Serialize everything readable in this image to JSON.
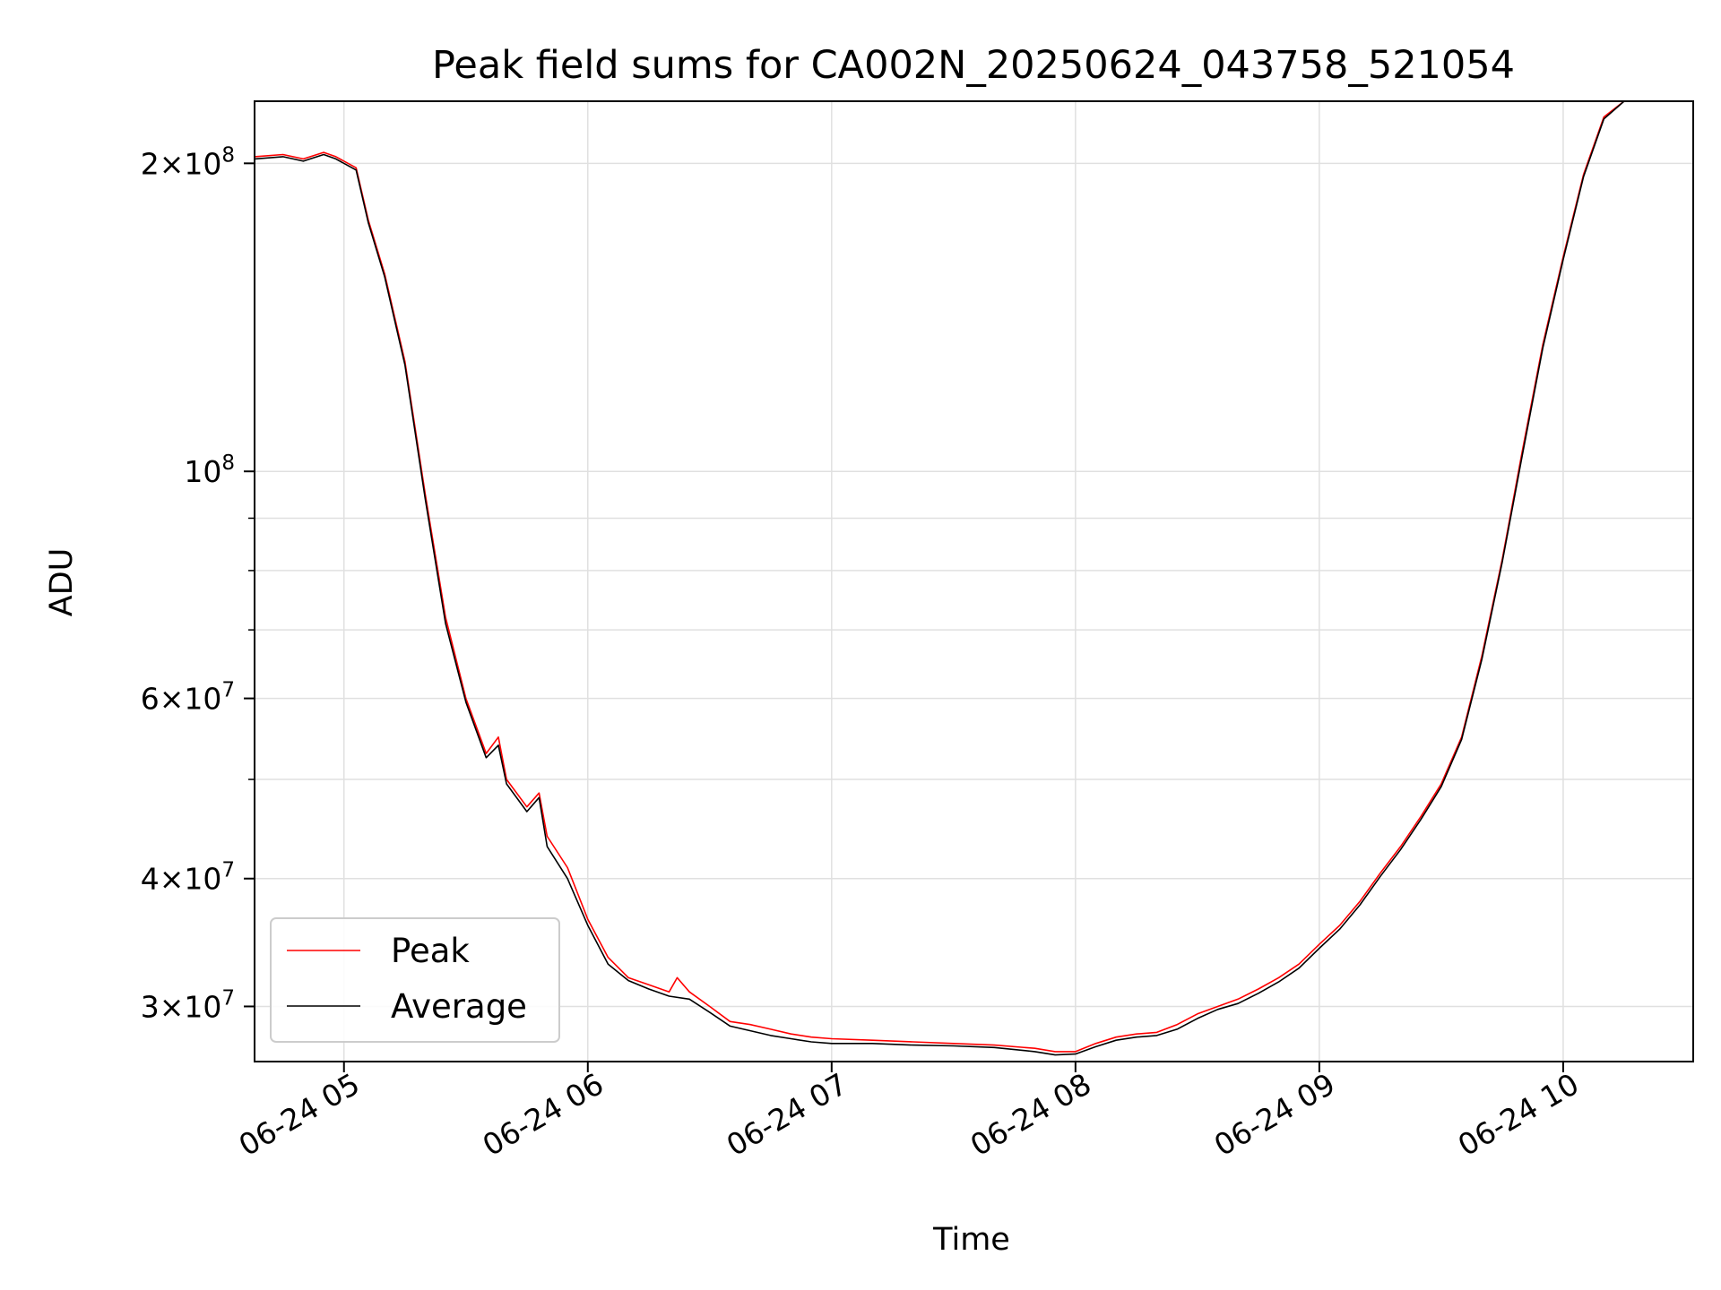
{
  "chart_data": {
    "type": "line",
    "title": "Peak field sums for CA002N_20250624_043758_521054",
    "xlabel": "Time",
    "ylabel": "ADU",
    "x_scale": "time",
    "y_scale": "log",
    "xlim": [
      "2025-06-24 04:38",
      "2025-06-24 10:32"
    ],
    "ylim": [
      26500000,
      230000000
    ],
    "x_ticks": [
      {
        "value": "2025-06-24 05:00",
        "label": "06-24 05"
      },
      {
        "value": "2025-06-24 06:00",
        "label": "06-24 06"
      },
      {
        "value": "2025-06-24 07:00",
        "label": "06-24 07"
      },
      {
        "value": "2025-06-24 08:00",
        "label": "06-24 08"
      },
      {
        "value": "2025-06-24 09:00",
        "label": "06-24 09"
      },
      {
        "value": "2025-06-24 10:00",
        "label": "06-24 10"
      }
    ],
    "y_major_ticks": [
      {
        "value": 30000000,
        "mant": "3",
        "exp": "7"
      },
      {
        "value": 40000000,
        "mant": "4",
        "exp": "7"
      },
      {
        "value": 60000000,
        "mant": "6",
        "exp": "7"
      },
      {
        "value": 100000000,
        "mant": "",
        "exp": "8"
      },
      {
        "value": 200000000,
        "mant": "2",
        "exp": "8"
      }
    ],
    "y_minor_ticks": [
      50000000,
      70000000,
      80000000,
      90000000
    ],
    "grid": true,
    "legend_position": "lower-left",
    "series": [
      {
        "name": "Peak",
        "color": "#ff0000",
        "points": [
          [
            "2025-06-24 04:38",
            203000000
          ],
          [
            "2025-06-24 04:45",
            204000000
          ],
          [
            "2025-06-24 04:50",
            202000000
          ],
          [
            "2025-06-24 04:55",
            205000000
          ],
          [
            "2025-06-24 04:58",
            203000000
          ],
          [
            "2025-06-24 05:03",
            198000000
          ],
          [
            "2025-06-24 05:06",
            176000000
          ],
          [
            "2025-06-24 05:10",
            156000000
          ],
          [
            "2025-06-24 05:15",
            128000000
          ],
          [
            "2025-06-24 05:20",
            95000000
          ],
          [
            "2025-06-24 05:25",
            72000000
          ],
          [
            "2025-06-24 05:30",
            60000000
          ],
          [
            "2025-06-24 05:35",
            53000000
          ],
          [
            "2025-06-24 05:38",
            55000000
          ],
          [
            "2025-06-24 05:40",
            50000000
          ],
          [
            "2025-06-24 05:45",
            47000000
          ],
          [
            "2025-06-24 05:48",
            48500000
          ],
          [
            "2025-06-24 05:50",
            44000000
          ],
          [
            "2025-06-24 05:55",
            41000000
          ],
          [
            "2025-06-24 06:00",
            36500000
          ],
          [
            "2025-06-24 06:05",
            33500000
          ],
          [
            "2025-06-24 06:10",
            32000000
          ],
          [
            "2025-06-24 06:15",
            31500000
          ],
          [
            "2025-06-24 06:20",
            31000000
          ],
          [
            "2025-06-24 06:22",
            32000000
          ],
          [
            "2025-06-24 06:25",
            31000000
          ],
          [
            "2025-06-24 06:30",
            30000000
          ],
          [
            "2025-06-24 06:35",
            29000000
          ],
          [
            "2025-06-24 06:40",
            28800000
          ],
          [
            "2025-06-24 06:45",
            28500000
          ],
          [
            "2025-06-24 06:50",
            28200000
          ],
          [
            "2025-06-24 06:55",
            28000000
          ],
          [
            "2025-06-24 07:00",
            27900000
          ],
          [
            "2025-06-24 07:10",
            27800000
          ],
          [
            "2025-06-24 07:20",
            27700000
          ],
          [
            "2025-06-24 07:30",
            27600000
          ],
          [
            "2025-06-24 07:40",
            27500000
          ],
          [
            "2025-06-24 07:50",
            27300000
          ],
          [
            "2025-06-24 07:55",
            27100000
          ],
          [
            "2025-06-24 08:00",
            27100000
          ],
          [
            "2025-06-24 08:05",
            27600000
          ],
          [
            "2025-06-24 08:10",
            28000000
          ],
          [
            "2025-06-24 08:15",
            28200000
          ],
          [
            "2025-06-24 08:20",
            28300000
          ],
          [
            "2025-06-24 08:25",
            28800000
          ],
          [
            "2025-06-24 08:30",
            29500000
          ],
          [
            "2025-06-24 08:35",
            30000000
          ],
          [
            "2025-06-24 08:40",
            30500000
          ],
          [
            "2025-06-24 08:45",
            31200000
          ],
          [
            "2025-06-24 08:50",
            32000000
          ],
          [
            "2025-06-24 08:55",
            33000000
          ],
          [
            "2025-06-24 09:00",
            34500000
          ],
          [
            "2025-06-24 09:05",
            36000000
          ],
          [
            "2025-06-24 09:10",
            38000000
          ],
          [
            "2025-06-24 09:15",
            40500000
          ],
          [
            "2025-06-24 09:20",
            43000000
          ],
          [
            "2025-06-24 09:25",
            46000000
          ],
          [
            "2025-06-24 09:30",
            49500000
          ],
          [
            "2025-06-24 09:35",
            55000000
          ],
          [
            "2025-06-24 09:40",
            66000000
          ],
          [
            "2025-06-24 09:45",
            82000000
          ],
          [
            "2025-06-24 09:50",
            105000000
          ],
          [
            "2025-06-24 09:55",
            133000000
          ],
          [
            "2025-06-24 10:00",
            162000000
          ],
          [
            "2025-06-24 10:05",
            195000000
          ],
          [
            "2025-06-24 10:10",
            222000000
          ],
          [
            "2025-06-24 10:15",
            230000000
          ]
        ]
      },
      {
        "name": "Average",
        "color": "#000000",
        "points": [
          [
            "2025-06-24 04:38",
            202000000
          ],
          [
            "2025-06-24 04:45",
            203000000
          ],
          [
            "2025-06-24 04:50",
            201000000
          ],
          [
            "2025-06-24 04:55",
            204000000
          ],
          [
            "2025-06-24 04:58",
            202000000
          ],
          [
            "2025-06-24 05:03",
            197000000
          ],
          [
            "2025-06-24 05:06",
            175000000
          ],
          [
            "2025-06-24 05:10",
            155000000
          ],
          [
            "2025-06-24 05:15",
            127000000
          ],
          [
            "2025-06-24 05:20",
            94000000
          ],
          [
            "2025-06-24 05:25",
            71000000
          ],
          [
            "2025-06-24 05:30",
            59500000
          ],
          [
            "2025-06-24 05:35",
            52500000
          ],
          [
            "2025-06-24 05:38",
            54000000
          ],
          [
            "2025-06-24 05:40",
            49500000
          ],
          [
            "2025-06-24 05:45",
            46500000
          ],
          [
            "2025-06-24 05:48",
            48000000
          ],
          [
            "2025-06-24 05:50",
            43000000
          ],
          [
            "2025-06-24 05:55",
            40000000
          ],
          [
            "2025-06-24 06:00",
            36000000
          ],
          [
            "2025-06-24 06:05",
            33000000
          ],
          [
            "2025-06-24 06:10",
            31800000
          ],
          [
            "2025-06-24 06:15",
            31200000
          ],
          [
            "2025-06-24 06:20",
            30700000
          ],
          [
            "2025-06-24 06:25",
            30500000
          ],
          [
            "2025-06-24 06:30",
            29600000
          ],
          [
            "2025-06-24 06:35",
            28700000
          ],
          [
            "2025-06-24 06:40",
            28400000
          ],
          [
            "2025-06-24 06:45",
            28100000
          ],
          [
            "2025-06-24 06:50",
            27900000
          ],
          [
            "2025-06-24 06:55",
            27700000
          ],
          [
            "2025-06-24 07:00",
            27600000
          ],
          [
            "2025-06-24 07:10",
            27600000
          ],
          [
            "2025-06-24 07:20",
            27500000
          ],
          [
            "2025-06-24 07:30",
            27450000
          ],
          [
            "2025-06-24 07:40",
            27350000
          ],
          [
            "2025-06-24 07:50",
            27100000
          ],
          [
            "2025-06-24 07:55",
            26900000
          ],
          [
            "2025-06-24 08:00",
            26950000
          ],
          [
            "2025-06-24 08:05",
            27400000
          ],
          [
            "2025-06-24 08:10",
            27800000
          ],
          [
            "2025-06-24 08:15",
            28000000
          ],
          [
            "2025-06-24 08:20",
            28100000
          ],
          [
            "2025-06-24 08:25",
            28500000
          ],
          [
            "2025-06-24 08:30",
            29200000
          ],
          [
            "2025-06-24 08:35",
            29800000
          ],
          [
            "2025-06-24 08:40",
            30200000
          ],
          [
            "2025-06-24 08:45",
            30900000
          ],
          [
            "2025-06-24 08:50",
            31700000
          ],
          [
            "2025-06-24 08:55",
            32700000
          ],
          [
            "2025-06-24 09:00",
            34200000
          ],
          [
            "2025-06-24 09:05",
            35700000
          ],
          [
            "2025-06-24 09:10",
            37700000
          ],
          [
            "2025-06-24 09:15",
            40200000
          ],
          [
            "2025-06-24 09:20",
            42700000
          ],
          [
            "2025-06-24 09:25",
            45700000
          ],
          [
            "2025-06-24 09:30",
            49200000
          ],
          [
            "2025-06-24 09:35",
            54700000
          ],
          [
            "2025-06-24 09:40",
            65500000
          ],
          [
            "2025-06-24 09:45",
            81500000
          ],
          [
            "2025-06-24 09:50",
            104000000
          ],
          [
            "2025-06-24 09:55",
            132000000
          ],
          [
            "2025-06-24 10:00",
            161000000
          ],
          [
            "2025-06-24 10:05",
            194000000
          ],
          [
            "2025-06-24 10:10",
            221000000
          ],
          [
            "2025-06-24 10:15",
            230000000
          ]
        ]
      }
    ]
  }
}
